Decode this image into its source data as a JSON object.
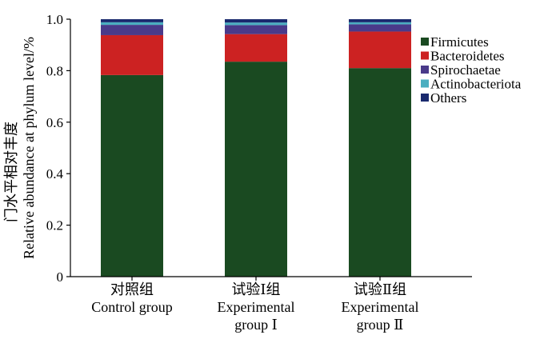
{
  "chart_data": {
    "type": "bar",
    "stacked": true,
    "ylabel_line1": "门水平相对丰度",
    "ylabel_line2": "Relative abundance at phylum level/%",
    "ylim": [
      0,
      1.0
    ],
    "yticks": [
      "0",
      "0.2",
      "0.4",
      "0.6",
      "0.8",
      "1.0"
    ],
    "ytick_values": [
      0,
      0.2,
      0.4,
      0.6,
      0.8,
      1.0
    ],
    "categories": [
      {
        "line1": "对照组",
        "line2": "Control group",
        "line3": ""
      },
      {
        "line1": "试验Ⅰ组",
        "line2": "Experimental",
        "line3": "group Ⅰ"
      },
      {
        "line1": "试验Ⅱ组",
        "line2": "Experimental",
        "line3": "group Ⅱ"
      }
    ],
    "series": [
      {
        "name": "Firmicutes",
        "color": "#1a4a21",
        "values": [
          0.783,
          0.835,
          0.81
        ]
      },
      {
        "name": "Bacteroidetes",
        "color": "#cc2222",
        "values": [
          0.155,
          0.107,
          0.142
        ]
      },
      {
        "name": "Spirochaetae",
        "color": "#4a3a8a",
        "values": [
          0.04,
          0.035,
          0.028
        ]
      },
      {
        "name": "Actinobacteriota",
        "color": "#4aaec0",
        "values": [
          0.01,
          0.01,
          0.008
        ]
      },
      {
        "name": "Others",
        "color": "#1a2a6e",
        "values": [
          0.012,
          0.013,
          0.012
        ]
      }
    ],
    "legend_position": "right",
    "grid": false
  }
}
